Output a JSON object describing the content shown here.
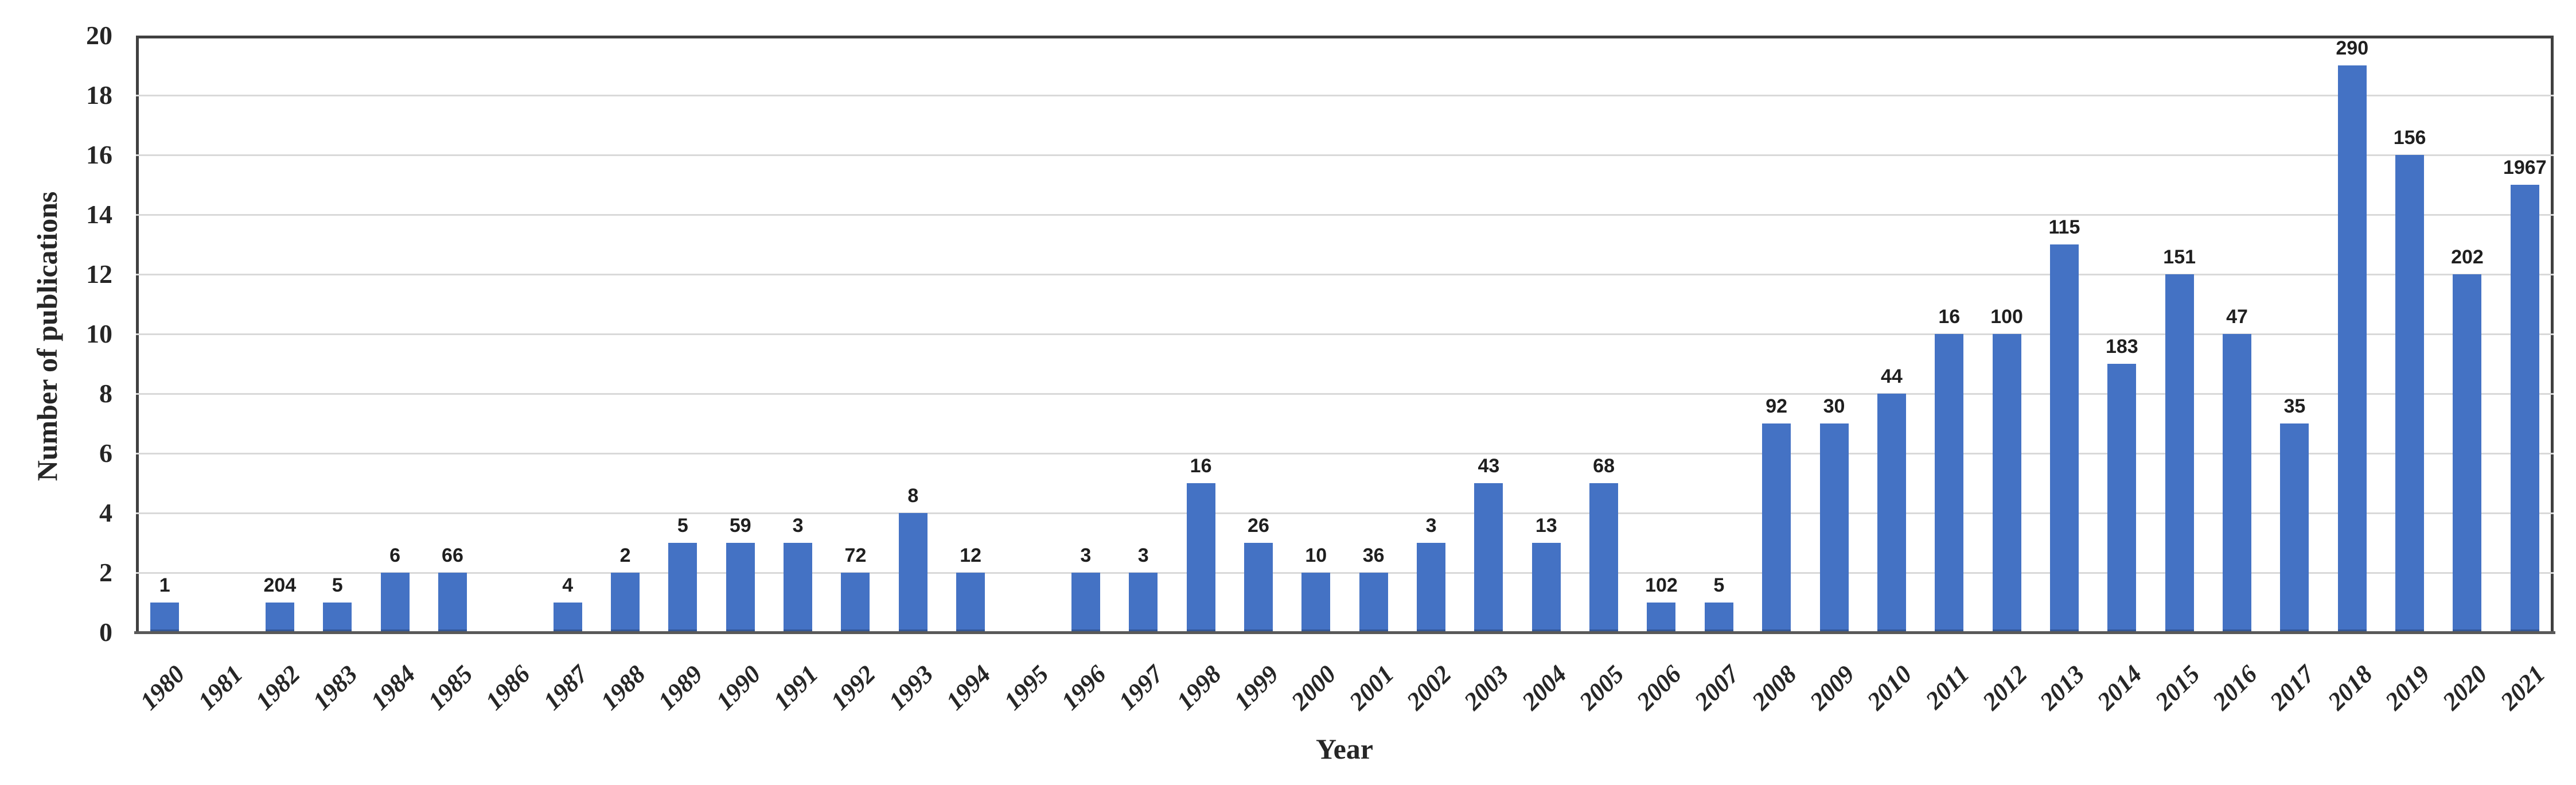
{
  "chart_data": {
    "type": "bar",
    "title": "",
    "xlabel": "Year",
    "ylabel": "Number of publications",
    "categories": [
      "1980",
      "1981",
      "1982",
      "1983",
      "1984",
      "1985",
      "1986",
      "1987",
      "1988",
      "1989",
      "1990",
      "1991",
      "1992",
      "1993",
      "1994",
      "1995",
      "1996",
      "1997",
      "1998",
      "1999",
      "2000",
      "2001",
      "2002",
      "2003",
      "2004",
      "2005",
      "2006",
      "2007",
      "2008",
      "2009",
      "2010",
      "2011",
      "2012",
      "2013",
      "2014",
      "2015",
      "2016",
      "2017",
      "2018",
      "2019",
      "2020",
      "2021"
    ],
    "values": [
      1,
      0,
      1,
      1,
      2,
      2,
      0,
      1,
      2,
      3,
      3,
      3,
      2,
      4,
      2,
      0,
      2,
      2,
      5,
      3,
      2,
      2,
      3,
      5,
      3,
      5,
      1,
      1,
      7,
      7,
      8,
      10,
      10,
      13,
      9,
      12,
      10,
      7,
      19,
      16,
      12,
      15
    ],
    "bar_labels": [
      "1",
      "",
      "204",
      "5",
      "6",
      "66",
      "",
      "4",
      "2",
      "5",
      "59",
      "3",
      "72",
      "8",
      "12",
      "",
      "3",
      "3",
      "16",
      "26",
      "10",
      "36",
      "3",
      "43",
      "13",
      "68",
      "102",
      "5",
      "92",
      "30",
      "44",
      "16",
      "100",
      "115",
      "183",
      "151",
      "47",
      "35",
      "290",
      "156",
      "202",
      "1967"
    ],
    "ylim": [
      0,
      20
    ],
    "ytick_step": 2,
    "grid": true,
    "legend_position": "none",
    "bar_color": "#4472C4",
    "gridline_color": "#d9d9d9",
    "axis_line_color": "#595959",
    "plot_border_color": "#404040",
    "text_color": "#262626"
  }
}
